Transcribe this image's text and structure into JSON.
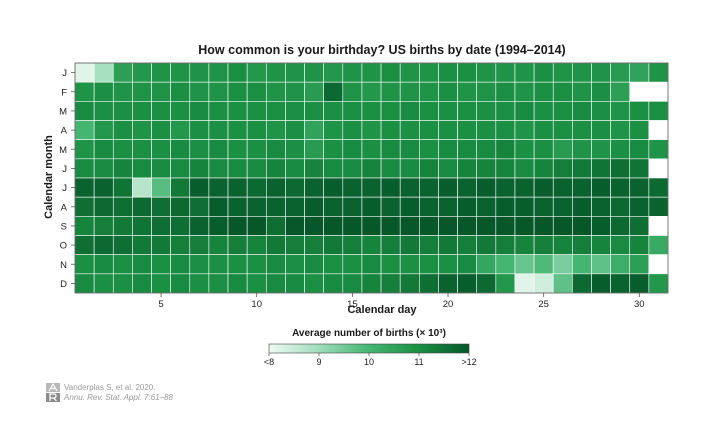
{
  "chart_data": {
    "type": "heatmap",
    "title": "How common is your birthday? US births by date (1994–2014)",
    "xlabel": "Calendar day",
    "ylabel": "Calendar month",
    "x": [
      1,
      2,
      3,
      4,
      5,
      6,
      7,
      8,
      9,
      10,
      11,
      12,
      13,
      14,
      15,
      16,
      17,
      18,
      19,
      20,
      21,
      22,
      23,
      24,
      25,
      26,
      27,
      28,
      29,
      30,
      31
    ],
    "x_ticks": [
      5,
      10,
      15,
      20,
      25,
      30
    ],
    "months": [
      "J",
      "F",
      "M",
      "A",
      "M",
      "J",
      "J",
      "A",
      "S",
      "O",
      "N",
      "D"
    ],
    "values_unit": "thousands of births",
    "values": [
      [
        8.2,
        8.9,
        10.6,
        10.8,
        10.9,
        10.9,
        10.9,
        10.9,
        11.0,
        10.8,
        10.9,
        10.9,
        10.9,
        10.8,
        10.9,
        10.9,
        11.0,
        10.9,
        10.9,
        11.0,
        11.0,
        10.9,
        10.9,
        10.9,
        11.0,
        10.9,
        10.9,
        10.9,
        10.7,
        10.5,
        10.9
      ],
      [
        10.9,
        11.0,
        10.9,
        10.9,
        10.9,
        11.0,
        10.9,
        10.9,
        11.0,
        11.0,
        10.9,
        10.9,
        10.7,
        11.7,
        10.9,
        10.8,
        10.9,
        10.9,
        10.9,
        11.0,
        10.9,
        10.9,
        11.0,
        10.9,
        11.0,
        11.0,
        10.9,
        11.0,
        10.6,
        null,
        null
      ],
      [
        11.1,
        11.0,
        11.0,
        11.0,
        11.0,
        11.0,
        11.1,
        11.0,
        11.0,
        11.0,
        11.0,
        11.0,
        11.0,
        11.0,
        11.0,
        11.0,
        11.0,
        11.1,
        11.0,
        11.0,
        11.0,
        11.0,
        11.0,
        11.1,
        11.0,
        11.0,
        11.1,
        11.0,
        10.9,
        11.0,
        11.0
      ],
      [
        10.0,
        10.8,
        11.0,
        10.9,
        11.0,
        10.8,
        11.0,
        11.0,
        11.0,
        11.0,
        10.9,
        11.0,
        10.5,
        10.9,
        11.0,
        10.9,
        11.0,
        11.0,
        11.0,
        11.0,
        11.0,
        11.0,
        11.0,
        10.9,
        11.0,
        11.0,
        11.0,
        11.0,
        10.9,
        11.0,
        null
      ],
      [
        10.9,
        11.1,
        11.0,
        11.0,
        11.0,
        11.1,
        11.0,
        11.1,
        11.0,
        11.0,
        11.1,
        11.0,
        10.7,
        11.0,
        11.1,
        11.0,
        11.1,
        11.1,
        11.0,
        11.1,
        11.1,
        11.1,
        11.2,
        11.0,
        11.0,
        10.7,
        10.9,
        10.9,
        11.0,
        11.1,
        10.9
      ],
      [
        11.1,
        11.1,
        11.2,
        11.1,
        11.1,
        11.1,
        11.2,
        11.1,
        11.1,
        11.1,
        11.2,
        11.1,
        11.2,
        11.1,
        11.1,
        11.2,
        11.1,
        11.1,
        11.2,
        11.1,
        11.2,
        11.2,
        11.2,
        11.1,
        11.2,
        11.3,
        11.4,
        11.5,
        11.6,
        11.5,
        null
      ],
      [
        11.8,
        11.8,
        11.5,
        8.7,
        9.8,
        11.4,
        11.9,
        11.8,
        11.8,
        11.7,
        11.8,
        11.7,
        11.8,
        11.9,
        11.8,
        11.8,
        11.9,
        11.8,
        11.8,
        11.9,
        11.8,
        11.9,
        11.8,
        11.8,
        11.9,
        11.8,
        11.8,
        11.9,
        11.8,
        11.8,
        11.7
      ],
      [
        11.6,
        11.7,
        11.6,
        11.7,
        11.6,
        11.7,
        11.6,
        11.9,
        11.8,
        11.8,
        11.8,
        11.8,
        11.9,
        11.8,
        11.8,
        11.9,
        11.8,
        11.9,
        11.8,
        11.8,
        11.9,
        11.8,
        11.9,
        11.9,
        11.8,
        11.8,
        11.9,
        11.8,
        11.7,
        11.8,
        11.8
      ],
      [
        11.2,
        11.3,
        11.4,
        11.5,
        11.6,
        11.6,
        11.8,
        11.9,
        12.0,
        12.0,
        11.6,
        12.1,
        12.0,
        12.0,
        12.0,
        12.0,
        12.1,
        12.1,
        12.0,
        12.1,
        12.0,
        12.0,
        12.0,
        12.0,
        12.0,
        12.0,
        12.0,
        11.9,
        11.7,
        11.6,
        null
      ],
      [
        11.6,
        11.7,
        11.6,
        11.4,
        11.4,
        11.3,
        11.3,
        11.2,
        11.3,
        11.2,
        11.4,
        11.3,
        11.3,
        11.4,
        11.3,
        11.2,
        11.3,
        11.4,
        11.3,
        11.4,
        11.3,
        11.4,
        11.3,
        11.2,
        11.3,
        11.2,
        11.3,
        11.2,
        11.1,
        11.2,
        10.3
      ],
      [
        11.0,
        11.1,
        11.0,
        11.1,
        11.0,
        11.1,
        11.0,
        11.0,
        11.0,
        11.0,
        11.1,
        11.0,
        11.1,
        11.0,
        11.0,
        11.1,
        11.0,
        11.0,
        11.0,
        11.0,
        11.1,
        10.4,
        10.0,
        9.6,
        9.9,
        9.4,
        10.0,
        9.7,
        10.2,
        10.6,
        null
      ],
      [
        11.1,
        11.0,
        11.0,
        11.1,
        11.0,
        11.1,
        11.0,
        11.0,
        11.1,
        11.0,
        11.1,
        11.1,
        11.0,
        11.1,
        11.1,
        11.2,
        11.3,
        11.4,
        11.6,
        11.8,
        11.9,
        11.7,
        10.8,
        8.2,
        8.4,
        9.7,
        11.7,
        11.9,
        11.8,
        11.9,
        10.8
      ]
    ],
    "colorbar": {
      "title": "Average number of births (× 10³)",
      "min": 8,
      "max": 12,
      "ticks": [
        9,
        10,
        11
      ],
      "min_label": "<8",
      "max_label": ">12",
      "colors": [
        "#f0faf4",
        "#9fdcbb",
        "#45b572",
        "#1b8f43",
        "#06582a"
      ]
    },
    "grid": true,
    "legend": "bottom"
  },
  "credit": {
    "line1": "Vanderplas S, et al. 2020.",
    "line2": "Annu. Rev. Stat. Appl. 7:61–88",
    "logo_colors": [
      "#b8b8b8",
      "#8c8c8c"
    ]
  }
}
